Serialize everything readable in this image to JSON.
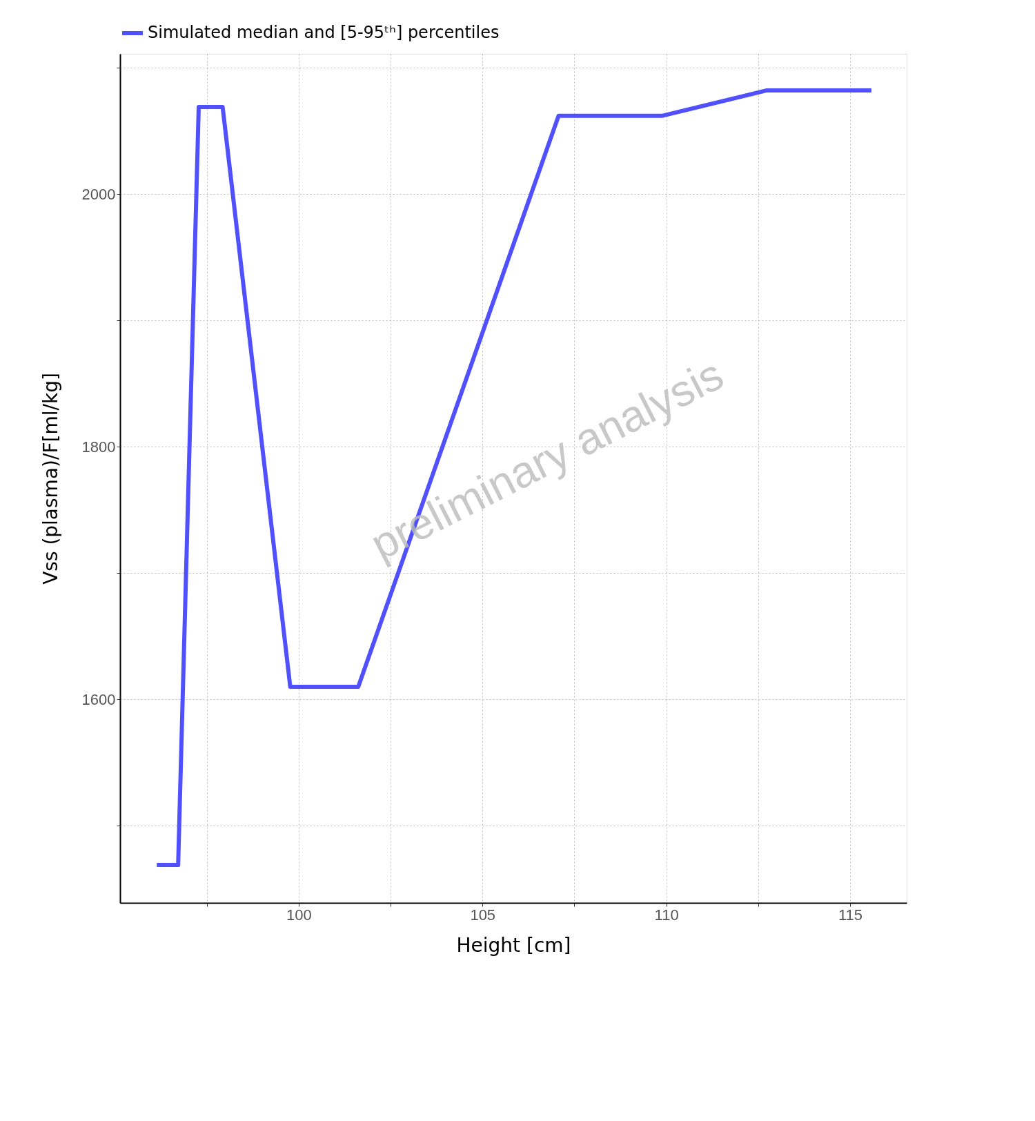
{
  "chart_data": {
    "type": "line",
    "xlabel": "Height [cm]",
    "ylabel": "Vss (plasma)/F[ml/kg]",
    "annotations": [
      "preliminary analysis"
    ],
    "x": [
      96.14,
      96.72,
      97.28,
      97.93,
      99.77,
      101.62,
      107.07,
      109.9,
      112.72,
      115.58
    ],
    "series": [
      {
        "name": "Simulated median and [5-95ᵗʰ] percentiles",
        "color": "#5050ff",
        "values": [
          1469,
          1469,
          2069,
          2069,
          1610,
          1610,
          2062,
          2062,
          2082,
          2082
        ]
      }
    ],
    "xlim": [
      95.14,
      116.54
    ],
    "ylim": [
      1439,
      2111
    ],
    "xticks": [
      {
        "value": 97.5,
        "label": null
      },
      100,
      {
        "value": 102.5,
        "label": null
      },
      105,
      {
        "value": 107.5,
        "label": null
      },
      110,
      {
        "value": 112.5,
        "label": null
      },
      115
    ],
    "yticks": [
      {
        "value": 1500,
        "label": null
      },
      1600,
      {
        "value": 1700,
        "label": null
      },
      1800,
      {
        "value": 1900,
        "label": null
      },
      2000,
      {
        "value": 2100,
        "label": null
      }
    ],
    "grid": true,
    "legend": "top",
    "line_style": "solid",
    "marker": "none"
  }
}
